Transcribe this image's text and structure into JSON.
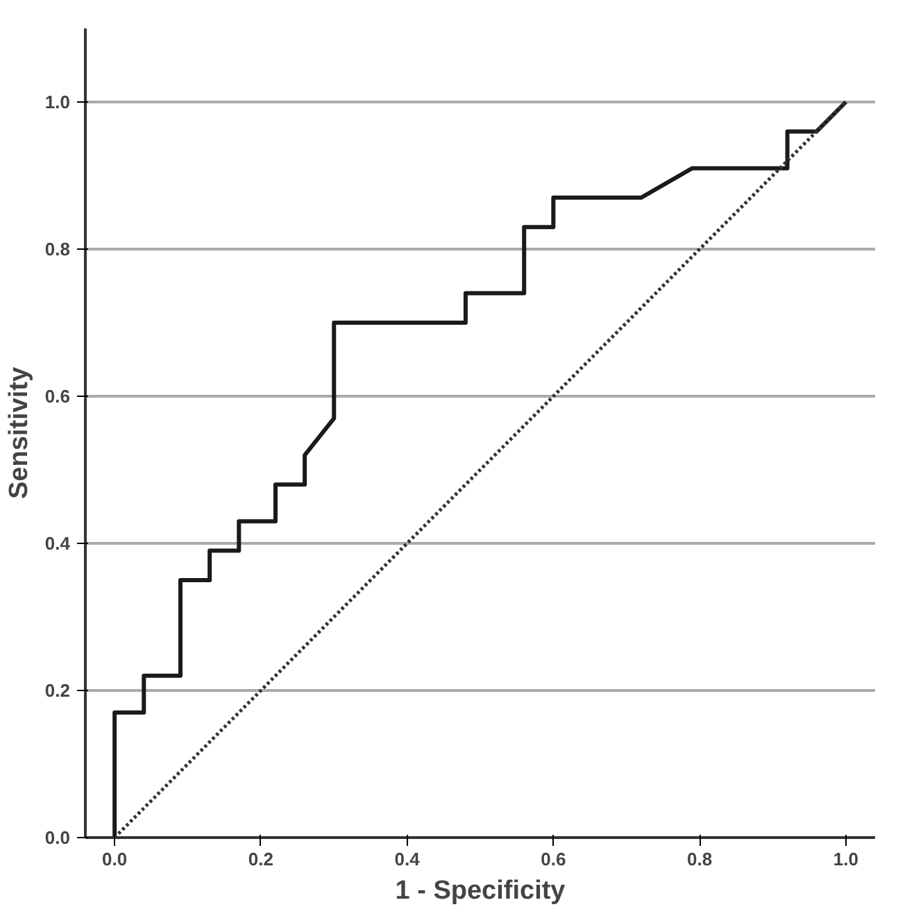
{
  "chart_data": {
    "type": "line",
    "xlabel": "1 - Specificity",
    "ylabel": "Sensitivity",
    "xlim": [
      -0.04,
      1.04
    ],
    "ylim": [
      0,
      1.1
    ],
    "xticks": [
      {
        "value": 0,
        "label": "0.0"
      },
      0.2,
      0.4,
      0.6,
      0.8,
      {
        "value": 1,
        "label": "1.0"
      }
    ],
    "yticks": [
      {
        "value": 0,
        "label": "0.0"
      },
      0.2,
      0.4,
      0.6,
      0.8,
      {
        "value": 1,
        "label": "1.0"
      }
    ],
    "grid": "y",
    "marker": "none",
    "series": [
      {
        "color": "#1a1a1a",
        "line_style": "solid",
        "x": [
          0,
          0,
          0.04,
          0.04,
          0.09,
          0.09,
          0.13,
          0.13,
          0.17,
          0.17,
          0.22,
          0.22,
          0.26,
          0.26,
          0.3,
          0.3,
          0.48,
          0.48,
          0.56,
          0.56,
          0.6,
          0.6,
          0.72,
          0.79,
          0.92,
          0.92,
          0.96,
          1
        ],
        "values": [
          0,
          0.17,
          0.17,
          0.22,
          0.22,
          0.35,
          0.35,
          0.39,
          0.39,
          0.43,
          0.43,
          0.48,
          0.48,
          0.52,
          0.57,
          0.7,
          0.7,
          0.74,
          0.74,
          0.83,
          0.83,
          0.87,
          0.87,
          0.91,
          0.91,
          0.96,
          0.96,
          1
        ]
      },
      {
        "color": "#333333",
        "line_style": "dotted",
        "x": [
          0,
          1
        ],
        "values": [
          0,
          1
        ]
      }
    ]
  }
}
